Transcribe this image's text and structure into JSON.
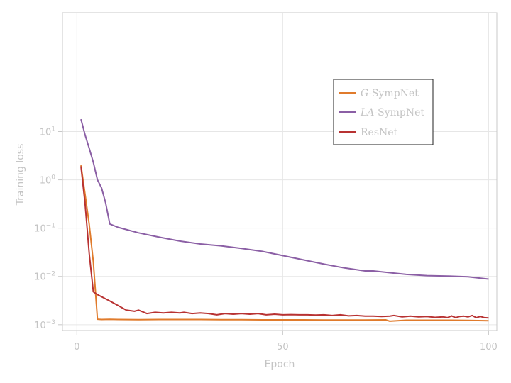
{
  "chart_data": {
    "type": "line",
    "xlabel": "Epoch",
    "ylabel": "Training loss",
    "xlim": [
      -3.5,
      102
    ],
    "ylim_log10": [
      -3.12,
      3.46
    ],
    "y_scale": "log",
    "grid": true,
    "legend_placement": "upper-right-inset",
    "x_ticks": [
      0,
      50,
      100
    ],
    "x_tick_labels": [
      "0",
      "50",
      "100"
    ],
    "y_ticks": [
      0.001,
      0.01,
      0.1,
      1,
      10
    ],
    "y_tick_labels": [
      {
        "base": "10",
        "exp": "−3"
      },
      {
        "base": "10",
        "exp": "−2"
      },
      {
        "base": "10",
        "exp": "−1"
      },
      {
        "base": "10",
        "exp": "0"
      },
      {
        "base": "10",
        "exp": "1"
      }
    ],
    "series": [
      {
        "name_italic": "G",
        "name_rest": "-SympNet",
        "color": "#e07b2c",
        "x": [
          1,
          2,
          3,
          4,
          5,
          6,
          8,
          10,
          15,
          20,
          25,
          30,
          35,
          40,
          45,
          50,
          55,
          60,
          65,
          70,
          75,
          76,
          80,
          85,
          90,
          95,
          100
        ],
        "y": [
          2.0,
          0.5,
          0.12,
          0.02,
          0.0013,
          0.00128,
          0.00129,
          0.00128,
          0.00127,
          0.00128,
          0.00128,
          0.00128,
          0.00127,
          0.00127,
          0.00126,
          0.00126,
          0.00126,
          0.00125,
          0.00125,
          0.00125,
          0.00126,
          0.00118,
          0.00124,
          0.00124,
          0.00124,
          0.00123,
          0.00121
        ]
      },
      {
        "name_italic": "LA",
        "name_rest": "-SympNet",
        "color": "#8b5fa5",
        "x": [
          1,
          2,
          3,
          4,
          5,
          6,
          7,
          8,
          10,
          15,
          20,
          25,
          30,
          35,
          40,
          45,
          50,
          55,
          60,
          65,
          70,
          72,
          75,
          80,
          85,
          90,
          95,
          100
        ],
        "y": [
          18,
          8.5,
          4.5,
          2.3,
          1.0,
          0.68,
          0.33,
          0.122,
          0.104,
          0.08,
          0.065,
          0.054,
          0.047,
          0.043,
          0.038,
          0.033,
          0.027,
          0.022,
          0.018,
          0.015,
          0.013,
          0.013,
          0.0122,
          0.011,
          0.0104,
          0.0102,
          0.0098,
          0.0088
        ]
      },
      {
        "name": "ResNet",
        "color": "#b83232",
        "x": [
          1,
          2,
          3,
          4,
          5,
          6,
          8,
          10,
          12,
          14,
          15,
          17,
          19,
          21,
          23,
          25,
          26,
          28,
          30,
          32,
          34,
          36,
          38,
          40,
          42,
          44,
          46,
          48,
          50,
          52,
          54,
          56,
          58,
          60,
          62,
          64,
          66,
          68,
          70,
          72,
          74,
          76,
          77,
          79,
          81,
          83,
          85,
          87,
          89,
          90,
          91,
          92,
          93,
          94,
          95,
          96,
          97,
          98,
          99,
          100
        ],
        "y": [
          1.9,
          0.32,
          0.03,
          0.0048,
          0.0042,
          0.0038,
          0.0031,
          0.0025,
          0.002,
          0.0019,
          0.002,
          0.0017,
          0.0018,
          0.00175,
          0.0018,
          0.00175,
          0.0018,
          0.0017,
          0.00175,
          0.0017,
          0.0016,
          0.0017,
          0.00165,
          0.0017,
          0.00165,
          0.0017,
          0.0016,
          0.00165,
          0.0016,
          0.00162,
          0.0016,
          0.0016,
          0.00158,
          0.0016,
          0.00155,
          0.0016,
          0.00152,
          0.00155,
          0.0015,
          0.0015,
          0.00148,
          0.0015,
          0.00155,
          0.00145,
          0.0015,
          0.00145,
          0.00148,
          0.00142,
          0.00145,
          0.0014,
          0.00152,
          0.0014,
          0.00148,
          0.0015,
          0.00145,
          0.00155,
          0.0014,
          0.00148,
          0.0014,
          0.00138
        ]
      }
    ]
  }
}
